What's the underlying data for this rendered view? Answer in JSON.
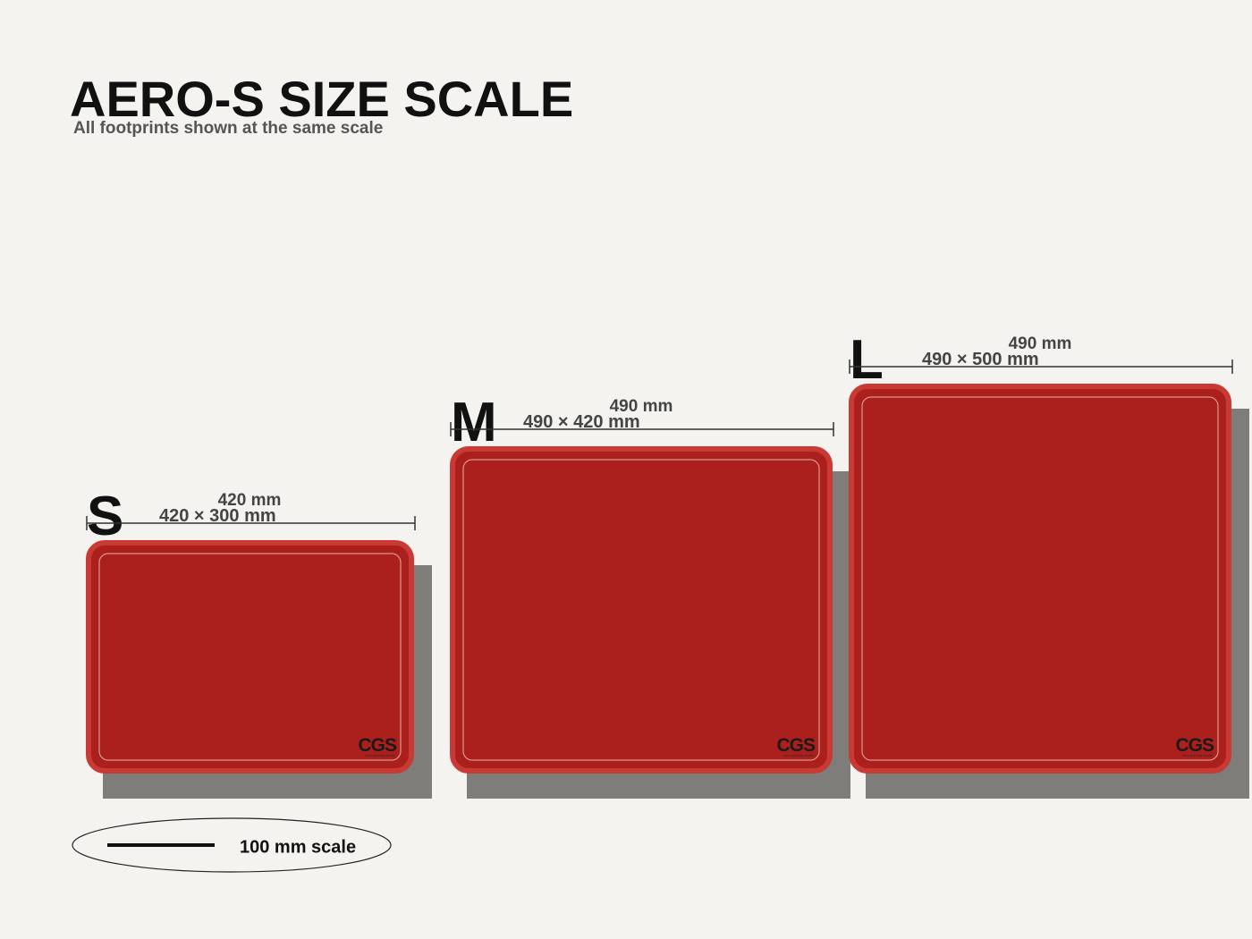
{
  "header": {
    "title": "AERO-S SIZE SCALE",
    "subtitle": "All footprints shown at the same scale"
  },
  "pads": [
    {
      "size": "S",
      "width_label": "420 mm",
      "dims_label": "420 × 300 mm",
      "logo": "CGS",
      "logo_sub": "cero gaming studio"
    },
    {
      "size": "M",
      "width_label": "490 mm",
      "dims_label": "490 × 420 mm",
      "logo": "CGS",
      "logo_sub": "cero gaming studio"
    },
    {
      "size": "L",
      "width_label": "490 mm",
      "dims_label": "490 × 500 mm",
      "logo": "CGS",
      "logo_sub": "cero gaming studio"
    }
  ],
  "scale": {
    "label": "100 mm scale"
  }
}
